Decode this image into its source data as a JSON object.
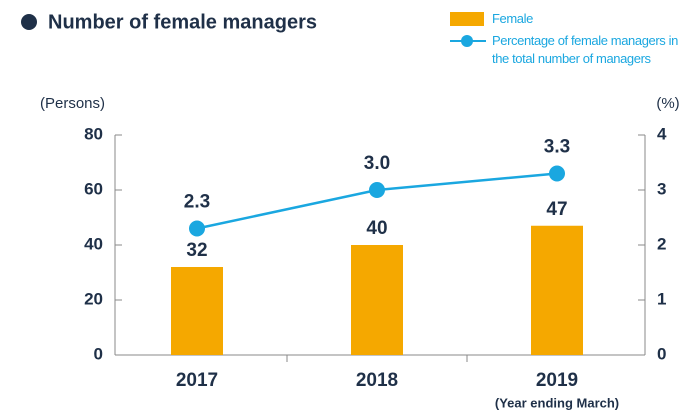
{
  "chart_data": {
    "type": "bar_line",
    "title": "Number of female managers",
    "categories": [
      "2017",
      "2018",
      "2019"
    ],
    "annotation": "(Year ending March)",
    "ylabel": "(Persons)",
    "y2label": "(%)",
    "ylim": [
      0,
      80
    ],
    "yticks": [
      0,
      20,
      40,
      60,
      80
    ],
    "y2lim": [
      0,
      4
    ],
    "y2ticks": [
      0,
      1,
      2,
      3,
      4
    ],
    "series": [
      {
        "name": "Female",
        "type": "bar",
        "color": "#f5a800",
        "values": [
          32,
          40,
          47
        ]
      },
      {
        "name": "Percentage of female managers in the total number of managers",
        "type": "line",
        "axis": "y2",
        "color": "#1aa7e0",
        "values": [
          2.3,
          3.0,
          3.3
        ],
        "value_labels": [
          "2.3",
          "3.0",
          "3.3"
        ]
      }
    ]
  }
}
